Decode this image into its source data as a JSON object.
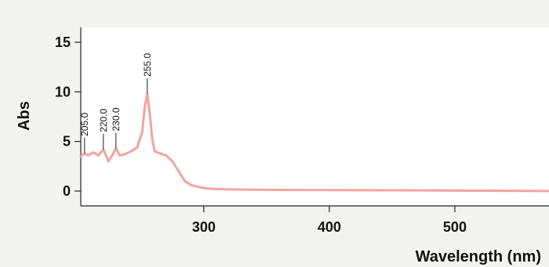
{
  "chart_data": {
    "type": "line",
    "title": "",
    "xlabel": "Wavelength (nm)",
    "ylabel": "Abs",
    "xlim": [
      202,
      575
    ],
    "ylim": [
      -1.5,
      16.5
    ],
    "x_ticks": [
      300,
      400,
      500
    ],
    "y_ticks": [
      0,
      5,
      10,
      15
    ],
    "grid": false,
    "legend": "none",
    "series": [
      {
        "color": "#f4a3a0",
        "x": [
          202,
          205,
          208,
          212,
          216,
          220,
          224,
          227,
          230,
          233,
          237,
          242,
          247,
          251,
          253,
          255,
          257,
          259,
          261,
          265,
          270,
          275,
          280,
          285,
          290,
          300,
          310,
          330,
          360,
          400,
          450,
          500,
          550,
          575
        ],
        "y": [
          3.5,
          3.8,
          3.6,
          3.9,
          3.6,
          4.2,
          3.0,
          3.6,
          4.3,
          3.6,
          3.7,
          4.0,
          4.4,
          6.0,
          8.5,
          9.8,
          7.8,
          5.2,
          4.0,
          3.8,
          3.6,
          3.0,
          2.0,
          1.0,
          0.6,
          0.3,
          0.2,
          0.15,
          0.12,
          0.1,
          0.08,
          0.05,
          0.02,
          0.0
        ]
      }
    ],
    "peak_labels": [
      {
        "label": "205.0",
        "x": 205,
        "y": 3.8
      },
      {
        "label": "220.0",
        "x": 220,
        "y": 4.2
      },
      {
        "label": "230.0",
        "x": 230,
        "y": 4.3
      },
      {
        "label": "255.0",
        "x": 255,
        "y": 9.8
      }
    ]
  }
}
